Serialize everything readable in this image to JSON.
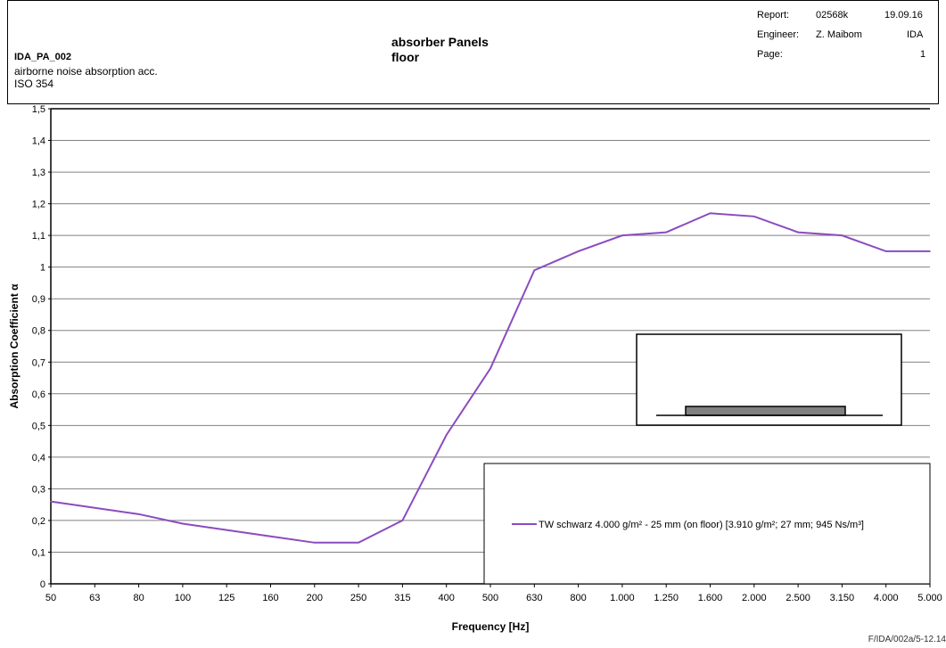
{
  "header": {
    "doc_id": "IDA_PA_002",
    "doc_desc_line1": "airborne noise absorption acc.",
    "doc_desc_line2": "ISO 354",
    "title_line1": "absorber Panels",
    "title_line2": "floor",
    "report_label": "Report:",
    "report_value": "02568k",
    "date": "19.09.16",
    "engineer_label": "Engineer:",
    "engineer_value": "Z. Maibom",
    "company": "IDA",
    "page_label": "Page:",
    "page_value": "1"
  },
  "footer": {
    "code": "F/IDA/002a/5-12.14"
  },
  "colors": {
    "series": "#8b4bbf",
    "grid": "#808080",
    "inset_fill": "#808080"
  },
  "chart_data": {
    "type": "line",
    "title": "absorber Panels floor",
    "xlabel": "Frequency [Hz]",
    "ylabel": "Absorption Coefficient α",
    "x_scale": "log-categorical (third-octave bands)",
    "categories": [
      "50",
      "63",
      "80",
      "100",
      "125",
      "160",
      "200",
      "250",
      "315",
      "400",
      "500",
      "630",
      "800",
      "1.000",
      "1.250",
      "1.600",
      "2.000",
      "2.500",
      "3.150",
      "4.000",
      "5.000"
    ],
    "y_ticks": [
      "0",
      "0,1",
      "0,2",
      "0,3",
      "0,4",
      "0,5",
      "0,6",
      "0,7",
      "0,8",
      "0,9",
      "1",
      "1,1",
      "1,2",
      "1,3",
      "1,4",
      "1,5"
    ],
    "ylim": [
      0,
      1.5
    ],
    "grid": true,
    "legend_position": "bottom-right",
    "series": [
      {
        "name": "TW schwarz 4.000 g/m² - 25 mm (on floor) [3.910 g/m²; 27 mm; 945 Ns/m³]",
        "values": [
          0.26,
          0.24,
          0.22,
          0.19,
          0.17,
          0.15,
          0.13,
          0.13,
          0.2,
          0.47,
          0.68,
          0.99,
          1.05,
          1.1,
          1.11,
          1.17,
          1.16,
          1.11,
          1.1,
          1.05,
          1.05
        ]
      }
    ]
  }
}
